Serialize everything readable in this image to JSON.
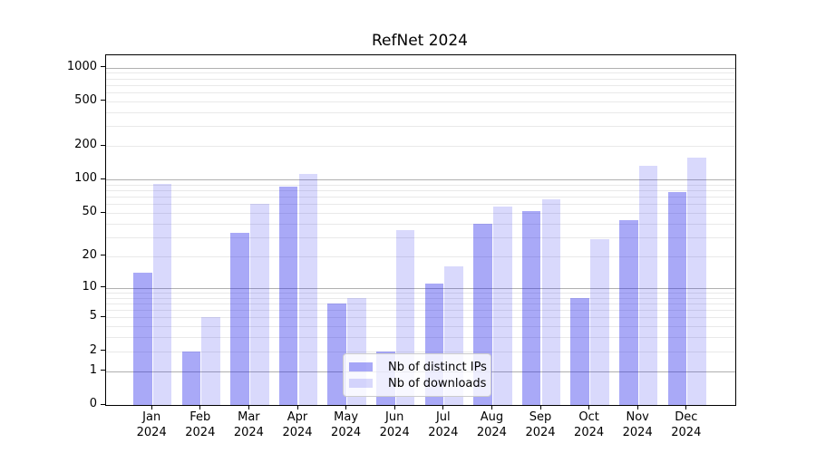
{
  "chart_data": {
    "type": "bar",
    "title": "RefNet 2024",
    "categories": [
      "Jan 2024",
      "Feb 2024",
      "Mar 2024",
      "Apr 2024",
      "May 2024",
      "Jun 2024",
      "Jul 2024",
      "Aug 2024",
      "Sep 2024",
      "Oct 2024",
      "Nov 2024",
      "Dec 2024"
    ],
    "series": [
      {
        "name": "Nb of distinct IPs",
        "color": "rgba(30,30,235,0.38)",
        "values": [
          14,
          2,
          33,
          87,
          7,
          2,
          11,
          40,
          52,
          8,
          43,
          78
        ]
      },
      {
        "name": "Nb of downloads",
        "color": "rgba(30,30,235,0.17)",
        "values": [
          92,
          5,
          60,
          113,
          8,
          35,
          16,
          57,
          66,
          29,
          133,
          158
        ]
      }
    ],
    "yscale": "symlog",
    "yticks": [
      0,
      1,
      2,
      5,
      10,
      20,
      50,
      100,
      200,
      500,
      1000
    ],
    "ylim": [
      0,
      1285
    ],
    "grid": "major-and-minor",
    "legend_position": "lower center"
  },
  "colors": {
    "grid_major": "#b0b0b0",
    "grid_minor": "#e9e9e9",
    "spine": "#000000",
    "legend_border": "#cccccc",
    "legend_bg": "rgba(255,255,255,0.8)"
  }
}
